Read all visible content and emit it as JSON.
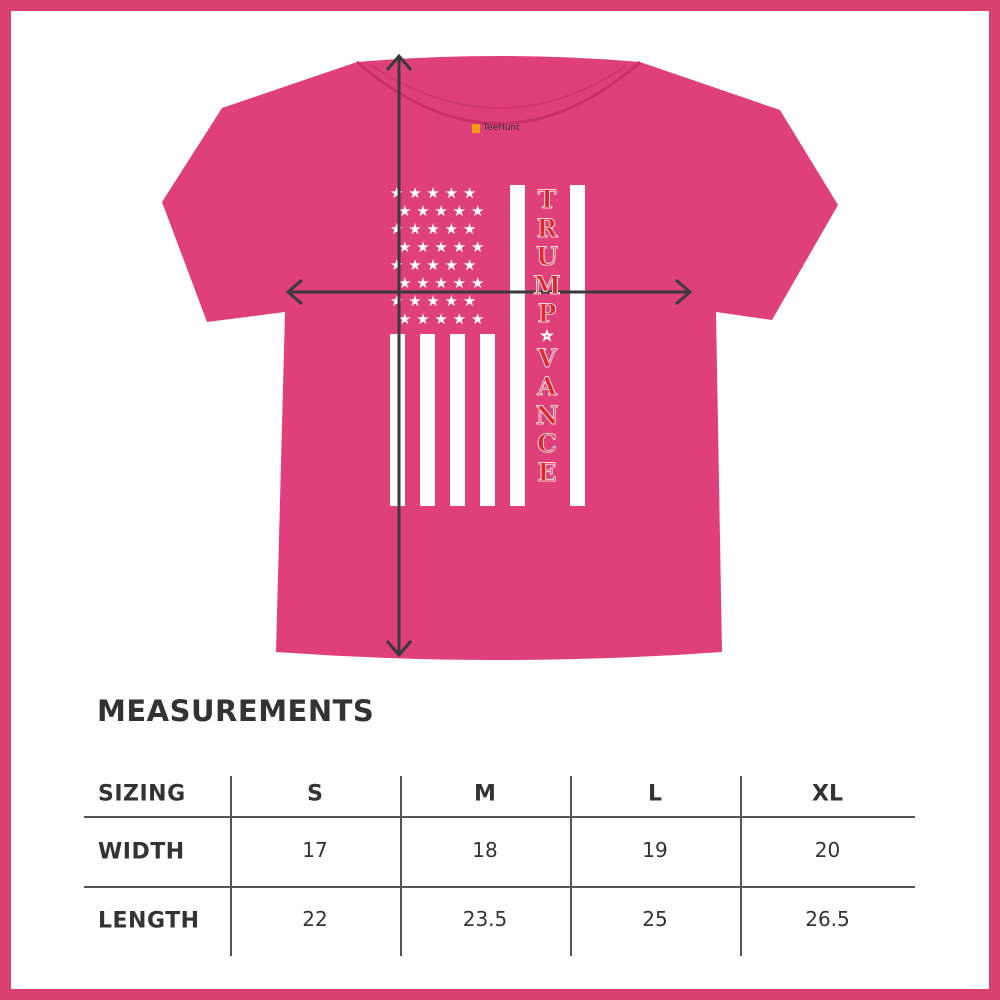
{
  "product": {
    "brand_label": "TeeHunt",
    "shirt_color": "#e0407a",
    "border_color": "#d9416f",
    "print_text": [
      "T",
      "R",
      "U",
      "M",
      "P",
      "☆",
      "V",
      "A",
      "N",
      "C",
      "E"
    ]
  },
  "measurements": {
    "title": "MEASUREMENTS",
    "headers": [
      "SIZING",
      "S",
      "M",
      "L",
      "XL"
    ],
    "rows": [
      {
        "label": "WIDTH",
        "values": [
          "17",
          "18",
          "19",
          "20"
        ]
      },
      {
        "label": "LENGTH",
        "values": [
          "22",
          "23.5",
          "25",
          "26.5"
        ]
      }
    ]
  }
}
